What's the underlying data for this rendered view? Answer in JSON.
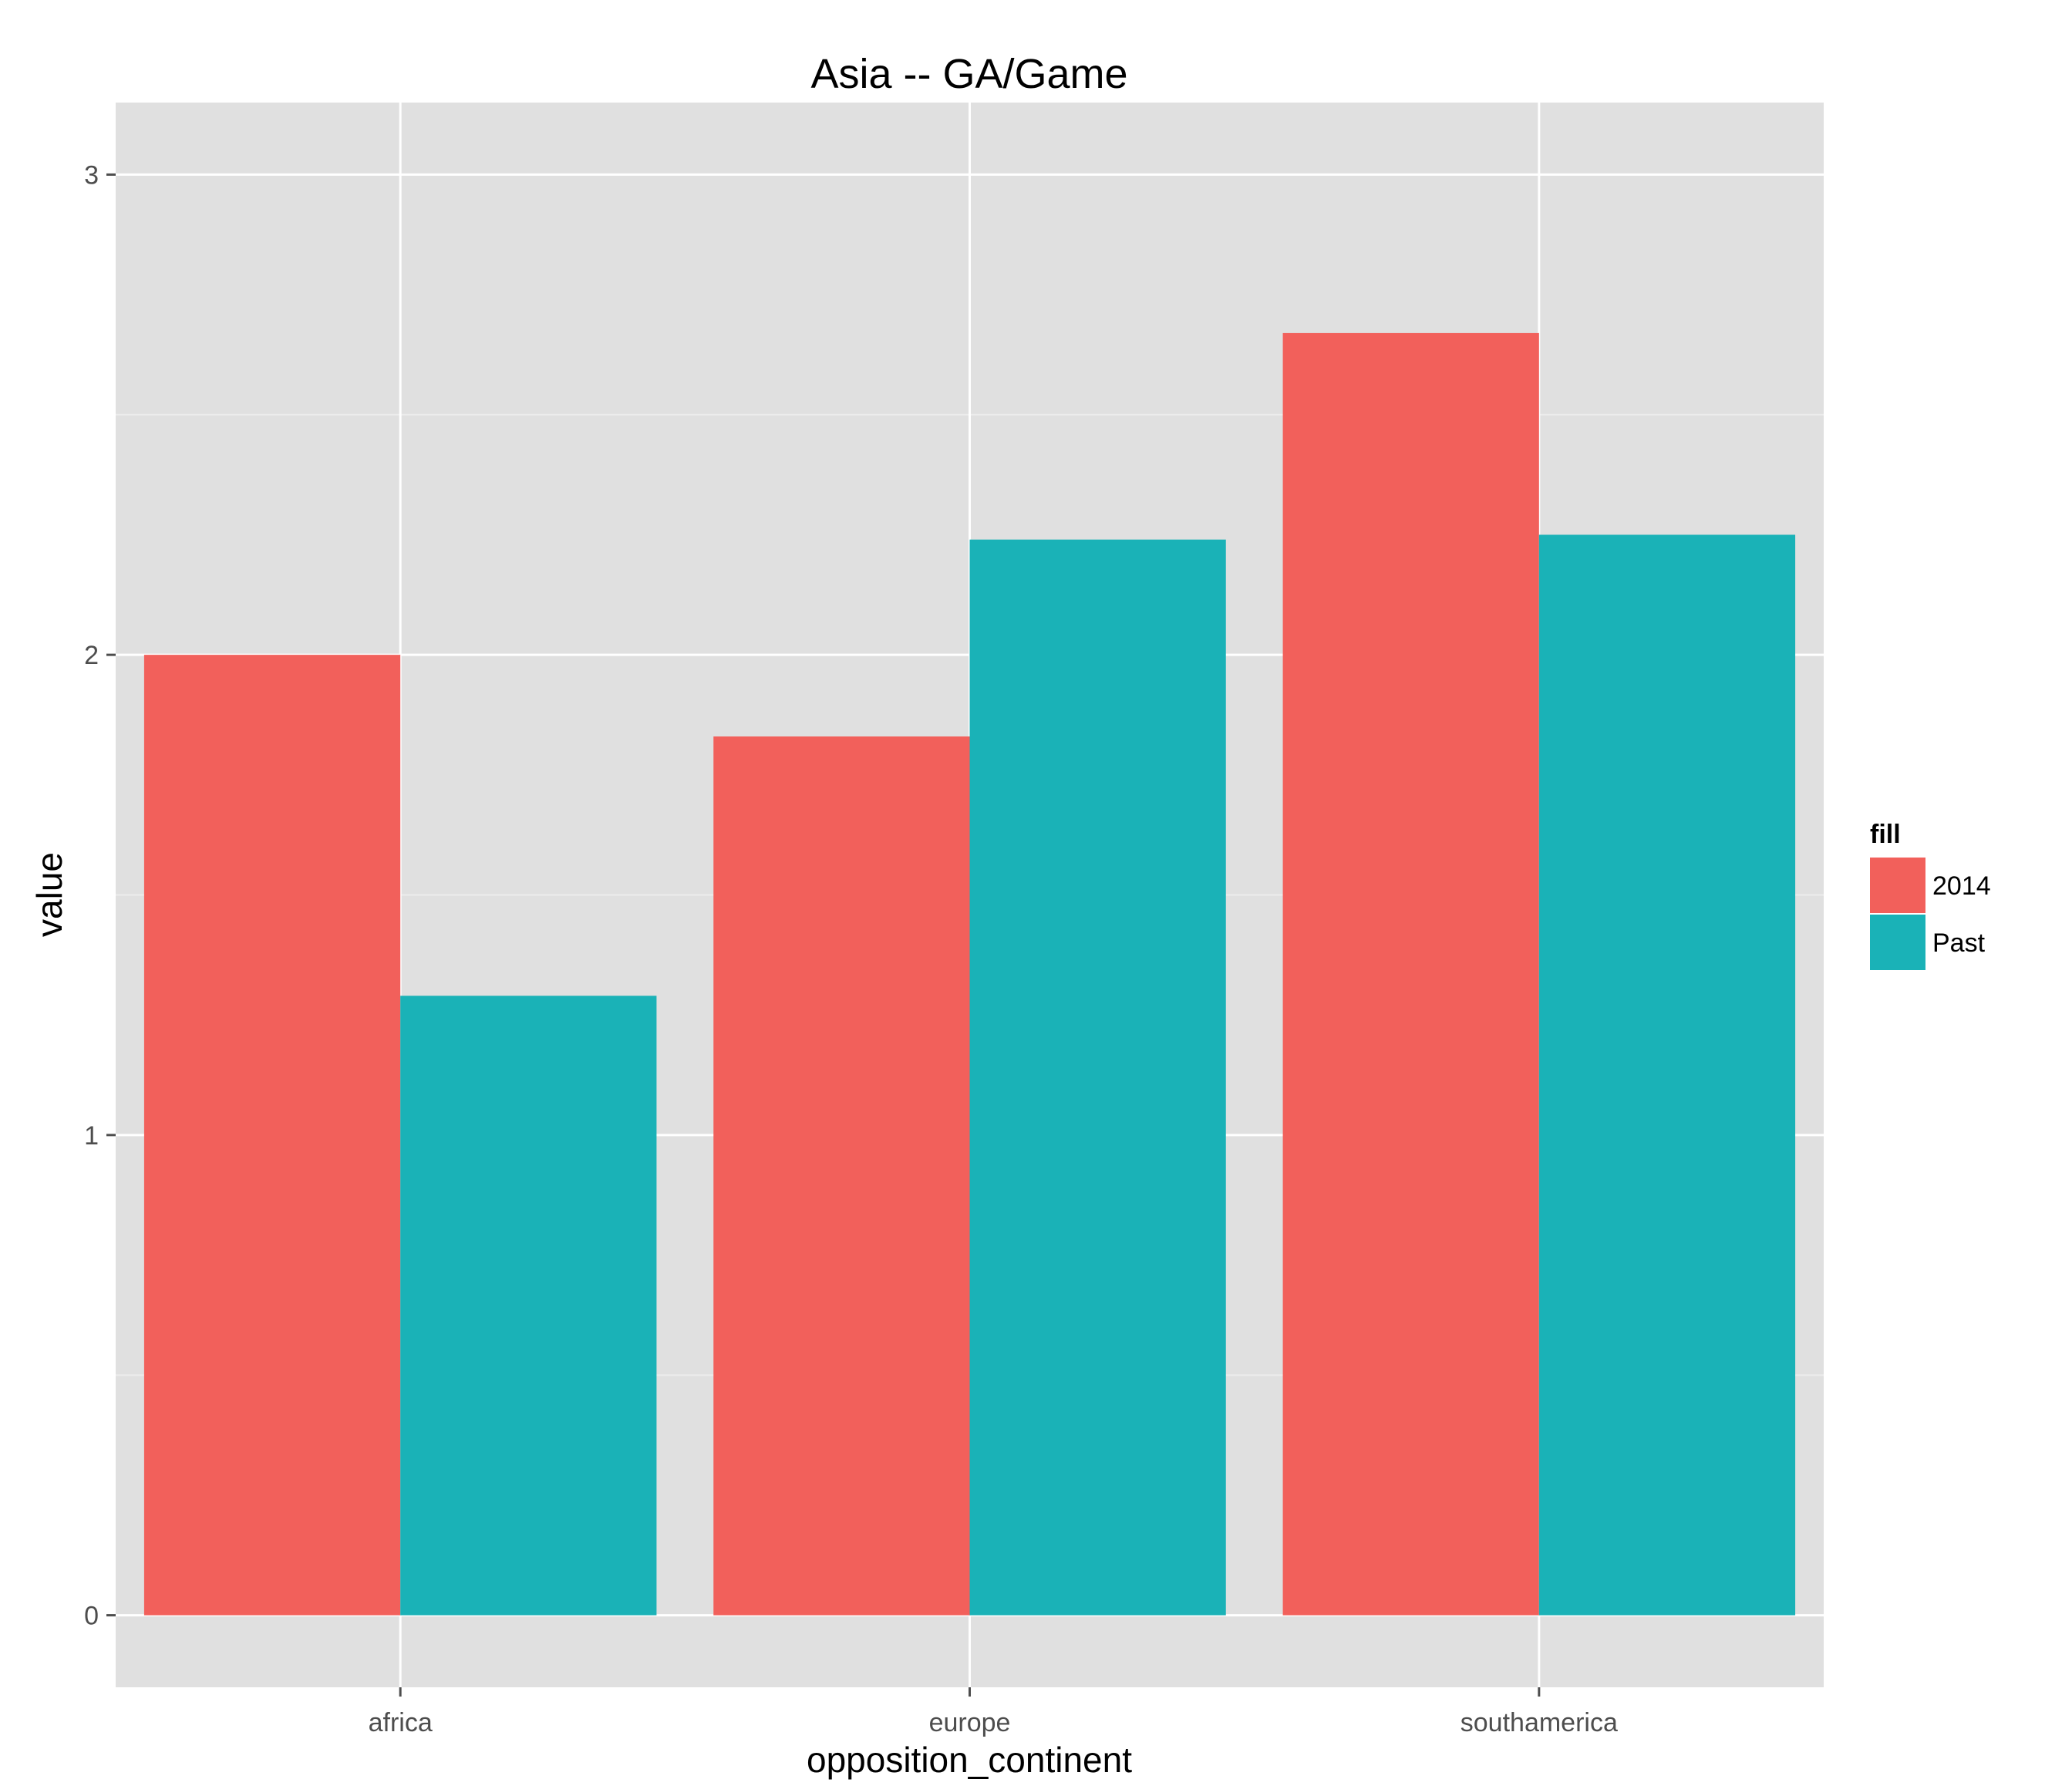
{
  "colors": {
    "panel_background": "#e0e0e0",
    "grid_major": "#ffffff",
    "grid_minor": "#ececec",
    "tick_mark": "#4d4d4d",
    "series_2014": "#f2605b",
    "series_past": "#1ab2b7"
  },
  "chart_data": {
    "type": "bar",
    "title": "Asia -- GA/Game",
    "xlabel": "opposition_continent",
    "ylabel": "value",
    "categories": [
      "africa",
      "europe",
      "southamerica"
    ],
    "series": [
      {
        "name": "2014",
        "values": [
          2.0,
          1.83,
          2.67
        ]
      },
      {
        "name": "Past",
        "values": [
          1.29,
          2.24,
          2.25
        ]
      }
    ],
    "ylim": [
      -0.15,
      3.15
    ],
    "yticks": [
      0,
      1,
      2,
      3
    ],
    "grid": true,
    "legend": {
      "title": "fill",
      "position": "right",
      "entries": [
        "2014",
        "Past"
      ]
    }
  }
}
